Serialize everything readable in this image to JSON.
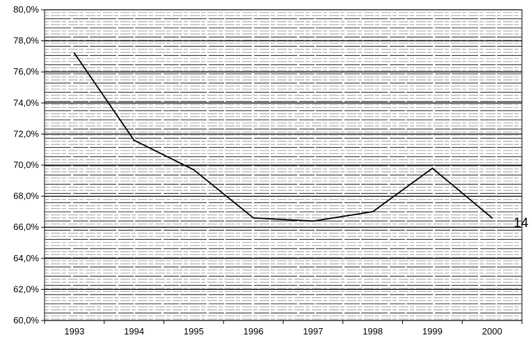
{
  "chart_data": {
    "type": "line",
    "x": [
      "1993",
      "1994",
      "1995",
      "1996",
      "1997",
      "1998",
      "1999",
      "2000"
    ],
    "series": [
      {
        "values": [
          77.2,
          71.6,
          69.7,
          66.6,
          66.4,
          67.0,
          69.8,
          66.6
        ]
      }
    ],
    "yticks": [
      "60,0%",
      "62,0%",
      "64,0%",
      "66,0%",
      "68,0%",
      "70,0%",
      "72,0%",
      "74,0%",
      "76,0%",
      "78,0%",
      "80,0%"
    ],
    "ylim": [
      60,
      80
    ],
    "title": "",
    "xlabel": "",
    "ylabel": "",
    "grid": true,
    "line_color": "#000000",
    "annotation": "14"
  }
}
